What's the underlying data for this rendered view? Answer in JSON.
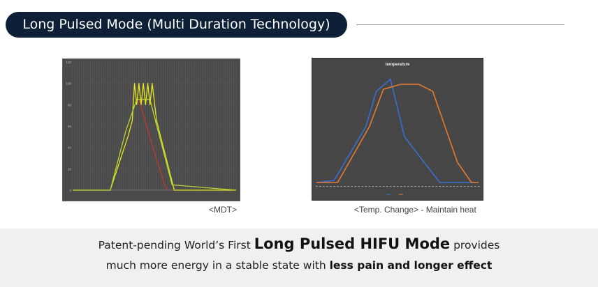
{
  "header": {
    "title": "Long Pulsed Mode (Multi Duration Technology)"
  },
  "captions": {
    "mdt": "<MDT>",
    "temp": "<Temp. Change> - Maintain heat"
  },
  "tagline": {
    "line1_pre": "Patent-pending World’s First ",
    "line1_bold": "Long Pulsed HIFU Mode",
    "line1_post": " provides",
    "line2_pre": "much more energy in a stable state with ",
    "line2_bold": "less pain and longer effect"
  },
  "colors": {
    "header_bg": "#0d2038",
    "mdt_yellow": "#e8e81c",
    "mdt_green": "#b7d43a",
    "mdt_red": "#c0392b",
    "temp_blue": "#3a6fd0",
    "temp_orange": "#e87a2d"
  },
  "chart_data": [
    {
      "type": "line",
      "title": "",
      "ylim": [
        0,
        120
      ],
      "yticks": [
        "0",
        "20",
        "40",
        "60",
        "80",
        "100",
        "120"
      ],
      "xlim": [
        0,
        74
      ],
      "grid": true,
      "series": [
        {
          "color": "yellow",
          "x": [
            0,
            17,
            25,
            27,
            28,
            29,
            30,
            31,
            32,
            33,
            34,
            35,
            36,
            38,
            46,
            74
          ],
          "y": [
            0,
            0,
            50,
            65,
            100,
            80,
            100,
            80,
            100,
            80,
            100,
            80,
            100,
            65,
            0,
            0
          ]
        },
        {
          "color": "green",
          "x": [
            0,
            17,
            24,
            29,
            35,
            45,
            74
          ],
          "y": [
            0,
            0,
            55,
            85,
            85,
            5,
            0
          ]
        },
        {
          "color": "red",
          "x": [
            30,
            36,
            42,
            43
          ],
          "y": [
            85,
            42,
            3,
            0
          ]
        }
      ]
    },
    {
      "type": "line",
      "title": "temperature",
      "xlim": [
        0,
        46
      ],
      "ylim": [
        0,
        110
      ],
      "grid": false,
      "legend_position": "bottom",
      "series": [
        {
          "color": "blue",
          "x": [
            0,
            5,
            14,
            17,
            21,
            25,
            35,
            46
          ],
          "y": [
            0,
            2,
            55,
            90,
            102,
            45,
            0,
            0
          ]
        },
        {
          "color": "orange",
          "x": [
            0,
            6,
            15,
            19,
            24,
            29,
            33,
            40,
            44,
            46
          ],
          "y": [
            0,
            0,
            55,
            92,
            97,
            97,
            90,
            20,
            0,
            0
          ]
        }
      ]
    }
  ]
}
